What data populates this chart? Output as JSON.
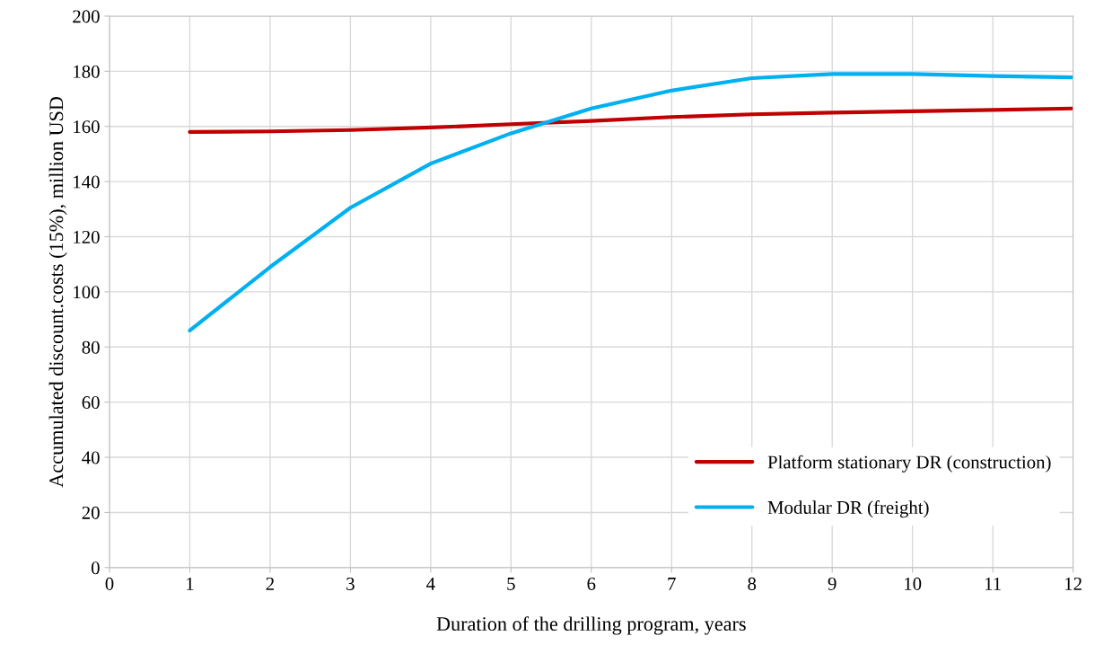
{
  "chart_data": {
    "type": "line",
    "xlabel": "Duration of the drilling program, years",
    "ylabel": "Accumulated discount.costs (15%), million USD",
    "x": [
      1,
      2,
      3,
      4,
      5,
      6,
      7,
      8,
      9,
      10,
      11,
      12
    ],
    "series": [
      {
        "name": "Platform stationary DR (construction)",
        "color": "#c00000",
        "values": [
          158,
          158.2,
          158.7,
          159.6,
          160.8,
          162,
          163.4,
          164.4,
          165,
          165.5,
          166,
          166.5
        ]
      },
      {
        "name": "Modular DR (freight)",
        "color": "#00b0f0",
        "values": [
          86,
          109,
          130.5,
          146.5,
          157.5,
          166.5,
          173,
          177.5,
          179,
          179,
          178.3,
          177.8
        ]
      }
    ],
    "xlim": [
      0,
      12
    ],
    "xticks": [
      0,
      1,
      2,
      3,
      4,
      5,
      6,
      7,
      8,
      9,
      10,
      11,
      12
    ],
    "ylim": [
      0,
      200
    ],
    "yticks": [
      0,
      20,
      40,
      60,
      80,
      100,
      120,
      140,
      160,
      180,
      200
    ],
    "grid": true,
    "legend": "bottom right",
    "marker": "none",
    "line_style": "solid"
  }
}
